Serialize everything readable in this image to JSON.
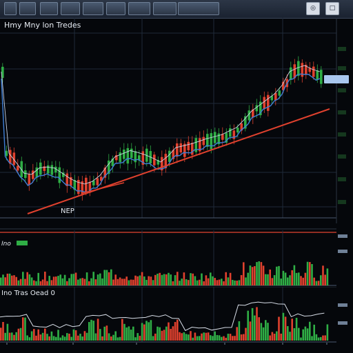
{
  "toolbar": {
    "buttons": [
      "",
      "",
      "",
      "",
      "",
      "",
      "",
      ""
    ]
  },
  "main_chart": {
    "title": "Hmy Mny lon Tredes",
    "annotation": "NEP",
    "price_tag": "",
    "right_axis": [
      "",
      "",
      "",
      "",
      "",
      "",
      "",
      ""
    ]
  },
  "volume_panel": {
    "label_a": "Ino",
    "label_b": ""
  },
  "oscillator_panel": {
    "title": "Ino Tras Oead 0",
    "x_labels": [
      "",
      "",
      "",
      "",
      "",
      ""
    ]
  },
  "colors": {
    "up": "#2fae45",
    "down": "#e0412e",
    "trend": "#e0412e",
    "average": "#3f7fd6",
    "grid": "#1f2a38"
  }
}
